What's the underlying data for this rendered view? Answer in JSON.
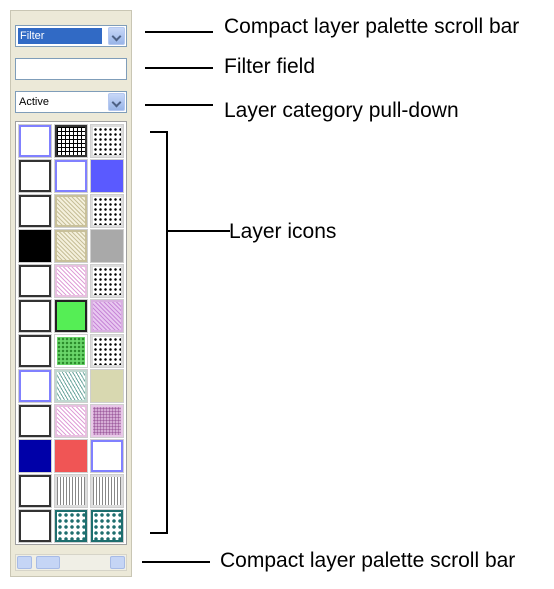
{
  "palette": {
    "category_select_value": "Filter",
    "filter_field_value": "",
    "layer_category_value": "Active"
  },
  "callouts": {
    "top_scroll_bar": "Compact layer palette scroll bar",
    "filter_field": "Filter field",
    "layer_category": "Layer category pull-down",
    "layer_icons": "Layer icons",
    "bottom_scroll_bar": "Compact layer palette scroll bar"
  },
  "layer_icons": [
    [
      "outline-blue",
      "grid-black",
      "dots-black"
    ],
    [
      "outline-black",
      "outline-blue",
      "solid-blue"
    ],
    [
      "outline-black",
      "hatch-tan",
      "dots-black"
    ],
    [
      "solid-black",
      "hatch-tan",
      "solid-gray"
    ],
    [
      "outline-black",
      "hatch-pink",
      "dots-black"
    ],
    [
      "outline-black",
      "solid-green",
      "hatch-purple"
    ],
    [
      "outline-black",
      "check-green",
      "dots-black"
    ],
    [
      "outline-blue",
      "hatch-teal",
      "solid-khaki"
    ],
    [
      "outline-black",
      "hatch-pink",
      "check-purple"
    ],
    [
      "solid-navy",
      "solid-red",
      "outline-blue"
    ],
    [
      "outline-black",
      "hatch-gray",
      "hatch-gray"
    ],
    [
      "outline-black",
      "pattern-teal",
      "pattern-teal"
    ]
  ]
}
